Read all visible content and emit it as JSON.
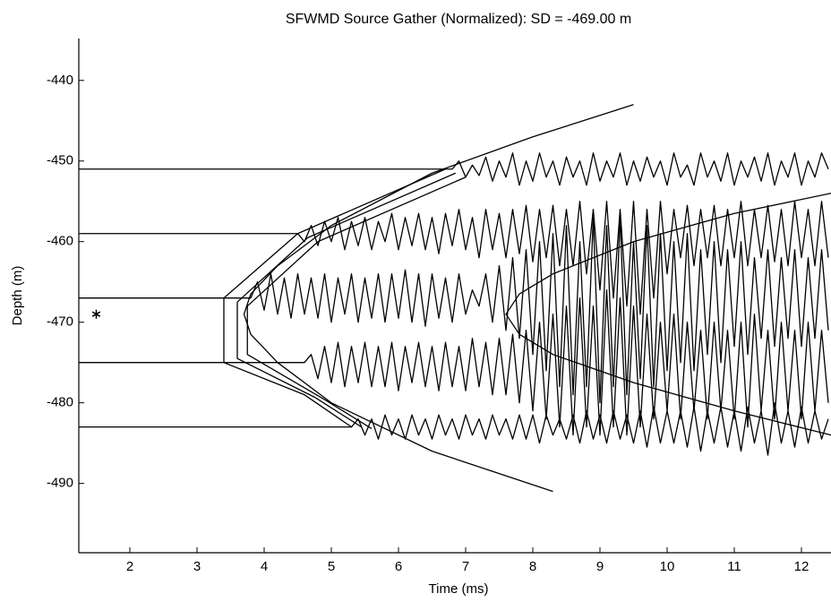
{
  "chart_data": {
    "type": "line",
    "title": "SFWMD Source Gather (Normalized): SD = -469.00 m",
    "x_label": "Time (ms)",
    "y_label": "Depth (m)",
    "xlim": [
      1.24,
      12.44
    ],
    "ylim": [
      -498.6,
      -434.8
    ],
    "xticks": [
      2,
      3,
      4,
      5,
      6,
      7,
      8,
      9,
      10,
      11,
      12
    ],
    "yticks": [
      -490,
      -480,
      -470,
      -460,
      -450,
      -440
    ],
    "grid": false,
    "series": [
      {
        "color": "#000000",
        "x": [
          1.24,
          6.8,
          6.9,
          7.0,
          7.1,
          7.2,
          7.3,
          7.4,
          7.5,
          7.6,
          7.7,
          7.8,
          7.9,
          8.0,
          8.1,
          8.2,
          8.3,
          8.4,
          8.5,
          8.6,
          8.7,
          8.8,
          8.9,
          9.0,
          9.1,
          9.2,
          9.3,
          9.4,
          9.5,
          9.6,
          9.7,
          9.8,
          9.9,
          10.0,
          10.1,
          10.2,
          10.3,
          10.4,
          10.5,
          10.6,
          10.7,
          10.8,
          10.9,
          11.0,
          11.1,
          11.2,
          11.3,
          11.4,
          11.5,
          11.6,
          11.7,
          11.8,
          11.9,
          12.0,
          12.1,
          12.2,
          12.3,
          12.4
        ],
        "values": [
          -451,
          -451,
          -450,
          -452,
          -450.5,
          -451.8,
          -449.5,
          -452.5,
          -450,
          -452,
          -449,
          -453,
          -450,
          -452.5,
          -449,
          -452,
          -450,
          -453,
          -449.5,
          -452,
          -450,
          -453,
          -449,
          -452.5,
          -450,
          -452,
          -449,
          -453,
          -450,
          -452.5,
          -449.5,
          -452,
          -450,
          -453,
          -449,
          -452,
          -450.5,
          -453,
          -449,
          -452,
          -450,
          -452.5,
          -449,
          -453,
          -450,
          -452,
          -449.5,
          -452.5,
          -449,
          -453,
          -450,
          -452,
          -449,
          -453,
          -450,
          -452,
          -449,
          -451
        ]
      },
      {
        "color": "#000000",
        "x": [
          1.24,
          4.5,
          4.6,
          4.7,
          4.8,
          4.9,
          5.0,
          5.1,
          5.2,
          5.3,
          5.4,
          5.5,
          5.6,
          5.7,
          5.8,
          5.9,
          6.0,
          6.1,
          6.2,
          6.3,
          6.4,
          6.5,
          6.6,
          6.7,
          6.8,
          6.9,
          7.0,
          7.1,
          7.2,
          7.3,
          7.4,
          7.5,
          7.6,
          7.7,
          7.8,
          7.9,
          8.0,
          8.1,
          8.2,
          8.3,
          8.4,
          8.5,
          8.6,
          8.7,
          8.8,
          8.9,
          9.0,
          9.1,
          9.2,
          9.3,
          9.4,
          9.5,
          9.6,
          9.7,
          9.8,
          9.9,
          10.0,
          10.1,
          10.2,
          10.3,
          10.4,
          10.5,
          10.6,
          10.7,
          10.8,
          10.9,
          11.0,
          11.1,
          11.2,
          11.3,
          11.4,
          11.5,
          11.6,
          11.7,
          11.8,
          11.9,
          12.0,
          12.1,
          12.2,
          12.3,
          12.4
        ],
        "values": [
          -459,
          -459,
          -460,
          -458,
          -460.5,
          -457.5,
          -460,
          -457,
          -461,
          -457.5,
          -460.5,
          -457,
          -461,
          -457.5,
          -460,
          -456.5,
          -461,
          -457,
          -460.5,
          -456.5,
          -461,
          -457,
          -461.5,
          -456.5,
          -460.5,
          -456,
          -461,
          -457,
          -462,
          -456,
          -461,
          -456.5,
          -462,
          -456,
          -461.5,
          -455.5,
          -462.5,
          -456,
          -462,
          -455.5,
          -463,
          -456,
          -463,
          -455,
          -464,
          -456,
          -466,
          -455,
          -467,
          -456,
          -468,
          -455,
          -469,
          -456,
          -467,
          -455,
          -464,
          -456,
          -462,
          -455.5,
          -463,
          -456,
          -462,
          -455.5,
          -463,
          -456,
          -462,
          -455,
          -463,
          -456,
          -462,
          -455.5,
          -462.5,
          -456,
          -463,
          -455,
          -462,
          -456,
          -463,
          -455,
          -462
        ]
      },
      {
        "color": "#000000",
        "x": [
          1.24,
          3.4,
          3.8,
          3.9,
          4.0,
          4.1,
          4.2,
          4.3,
          4.4,
          4.5,
          4.6,
          4.7,
          4.8,
          4.9,
          5.0,
          5.1,
          5.2,
          5.3,
          5.4,
          5.5,
          5.6,
          5.7,
          5.8,
          5.9,
          6.0,
          6.1,
          6.2,
          6.3,
          6.4,
          6.5,
          6.6,
          6.7,
          6.8,
          6.9,
          7.0,
          7.1,
          7.2,
          7.3,
          7.4,
          7.5,
          7.6,
          7.7,
          7.8,
          7.9,
          8.0,
          8.1,
          8.2,
          8.3,
          8.4,
          8.5,
          8.6,
          8.7,
          8.8,
          8.9,
          9.0,
          9.1,
          9.2,
          9.3,
          9.4,
          9.5,
          9.6,
          9.7,
          9.8,
          9.9,
          10.0,
          10.1,
          10.2,
          10.3,
          10.4,
          10.5,
          10.6,
          10.7,
          10.8,
          10.9,
          11.0,
          11.1,
          11.2,
          11.3,
          11.4,
          11.5,
          11.6,
          11.7,
          11.8,
          11.9,
          12.0,
          12.1,
          12.2,
          12.3,
          12.4
        ],
        "values": [
          -467,
          -467,
          -467,
          -465,
          -468.5,
          -464,
          -469,
          -464.5,
          -469.5,
          -464,
          -469,
          -464.5,
          -469.5,
          -464,
          -470,
          -464.5,
          -469,
          -464,
          -470,
          -464.5,
          -469.5,
          -464,
          -470,
          -464,
          -469.5,
          -463.5,
          -470,
          -464,
          -470.5,
          -464,
          -469.5,
          -464.5,
          -470,
          -464,
          -469,
          -466,
          -468,
          -464,
          -470,
          -463,
          -471,
          -462,
          -472,
          -461,
          -474,
          -460,
          -476,
          -459,
          -478,
          -458,
          -479,
          -460,
          -478,
          -457,
          -480,
          -458,
          -478,
          -457,
          -479,
          -460,
          -477,
          -458,
          -478,
          -459,
          -476,
          -460,
          -475,
          -459,
          -476,
          -461,
          -474,
          -460,
          -475,
          -461,
          -473,
          -460,
          -474,
          -462,
          -472,
          -461,
          -473,
          -462,
          -472,
          -461,
          -473,
          -462,
          -472,
          -461,
          -471
        ]
      },
      {
        "color": "#000000",
        "x": [
          1.24,
          3.4,
          4.6,
          4.7,
          4.8,
          4.9,
          5.0,
          5.1,
          5.2,
          5.3,
          5.4,
          5.5,
          5.6,
          5.7,
          5.8,
          5.9,
          6.0,
          6.1,
          6.2,
          6.3,
          6.4,
          6.5,
          6.6,
          6.7,
          6.8,
          6.9,
          7.0,
          7.1,
          7.2,
          7.3,
          7.4,
          7.5,
          7.6,
          7.7,
          7.8,
          7.9,
          8.0,
          8.1,
          8.2,
          8.3,
          8.4,
          8.5,
          8.6,
          8.7,
          8.8,
          8.9,
          9.0,
          9.1,
          9.2,
          9.3,
          9.4,
          9.5,
          9.6,
          9.7,
          9.8,
          9.9,
          10.0,
          10.1,
          10.2,
          10.3,
          10.4,
          10.5,
          10.6,
          10.7,
          10.8,
          10.9,
          11.0,
          11.1,
          11.2,
          11.3,
          11.4,
          11.5,
          11.6,
          11.7,
          11.8,
          11.9,
          12.0,
          12.1,
          12.2,
          12.3,
          12.4
        ],
        "values": [
          -475,
          -475,
          -475,
          -474,
          -477,
          -473,
          -477.5,
          -472.5,
          -478,
          -473,
          -477.5,
          -472.5,
          -478,
          -473,
          -478,
          -472.5,
          -478.5,
          -473,
          -477.5,
          -472.5,
          -478,
          -473,
          -478.5,
          -472.5,
          -478,
          -473,
          -478.5,
          -472,
          -478,
          -472.5,
          -479,
          -472,
          -479,
          -471.5,
          -480,
          -471,
          -481,
          -470,
          -482,
          -469,
          -483,
          -468,
          -484,
          -467,
          -483,
          -468,
          -484,
          -466,
          -483,
          -467,
          -484,
          -468,
          -483,
          -469,
          -482,
          -470,
          -481,
          -469,
          -482,
          -470,
          -481,
          -471,
          -482,
          -470,
          -481,
          -471,
          -482,
          -470,
          -483,
          -469,
          -481,
          -471,
          -482,
          -470,
          -481,
          -471,
          -482,
          -470,
          -481,
          -471,
          -480
        ]
      },
      {
        "color": "#000000",
        "x": [
          1.24,
          5.3,
          5.4,
          5.5,
          5.6,
          5.7,
          5.8,
          5.9,
          6.0,
          6.1,
          6.2,
          6.3,
          6.4,
          6.5,
          6.6,
          6.7,
          6.8,
          6.9,
          7.0,
          7.1,
          7.2,
          7.3,
          7.4,
          7.5,
          7.6,
          7.7,
          7.8,
          7.9,
          8.0,
          8.1,
          8.2,
          8.3,
          8.4,
          8.5,
          8.6,
          8.7,
          8.8,
          8.9,
          9.0,
          9.1,
          9.2,
          9.3,
          9.4,
          9.5,
          9.6,
          9.7,
          9.8,
          9.9,
          10.0,
          10.1,
          10.2,
          10.3,
          10.4,
          10.5,
          10.6,
          10.7,
          10.8,
          10.9,
          11.0,
          11.1,
          11.2,
          11.3,
          11.4,
          11.5,
          11.6,
          11.7,
          11.8,
          11.9,
          12.0,
          12.1,
          12.2,
          12.3,
          12.4
        ],
        "values": [
          -483,
          -483,
          -482,
          -484,
          -482,
          -484.5,
          -481.5,
          -484,
          -482,
          -484.5,
          -481.5,
          -484,
          -482,
          -484.5,
          -481.5,
          -484,
          -482,
          -484.5,
          -481.5,
          -484,
          -482,
          -484.5,
          -481.5,
          -484,
          -482,
          -484.5,
          -481.5,
          -484.5,
          -481.5,
          -485,
          -481.5,
          -484,
          -482,
          -484.5,
          -481.5,
          -485,
          -481,
          -484.5,
          -481.5,
          -485,
          -481,
          -484.5,
          -481.5,
          -485,
          -481,
          -485.5,
          -480.5,
          -485,
          -481,
          -485,
          -481,
          -485.5,
          -480.5,
          -486,
          -481,
          -485,
          -480.5,
          -485.5,
          -481,
          -486,
          -480.5,
          -485,
          -481,
          -486.5,
          -480,
          -485,
          -481,
          -485.5,
          -480.5,
          -485,
          -481,
          -484.5,
          -482
        ]
      },
      {
        "color": "#000000",
        "x": [
          9.5,
          8.0,
          6.5,
          5.0,
          4.2,
          3.8,
          3.7,
          3.8,
          4.2,
          5.0,
          6.5,
          8.3
        ],
        "values": [
          -443,
          -447,
          -451.5,
          -458,
          -463,
          -466.5,
          -469,
          -471.5,
          -475,
          -480,
          -486,
          -491
        ]
      },
      {
        "color": "#000000",
        "x": [
          12.44,
          11.0,
          9.5,
          8.3,
          7.8,
          7.6,
          7.8,
          8.3,
          9.5,
          11.0,
          12.44
        ],
        "values": [
          -454,
          -456.5,
          -460,
          -464,
          -466.5,
          -469,
          -471.5,
          -474,
          -477.5,
          -481,
          -484
        ]
      },
      {
        "color": "#000000",
        "x": [
          6.7,
          4.5,
          3.4,
          3.4,
          4.6,
          5.3
        ],
        "values": [
          -451,
          -459,
          -467,
          -475,
          -479,
          -483
        ]
      },
      {
        "color": "#000000",
        "x": [
          6.85,
          4.65,
          3.6,
          3.6,
          4.75,
          5.45
        ],
        "values": [
          -451.5,
          -459.5,
          -467.5,
          -474.5,
          -479.3,
          -483
        ]
      },
      {
        "color": "#000000",
        "x": [
          7.0,
          4.8,
          3.75,
          3.75,
          4.9,
          5.6
        ],
        "values": [
          -452,
          -460,
          -468,
          -474,
          -479.6,
          -483.2
        ]
      },
      {
        "color": "#000000",
        "marker": "asterisk",
        "x": [
          1.5
        ],
        "values": [
          -469
        ]
      }
    ]
  }
}
